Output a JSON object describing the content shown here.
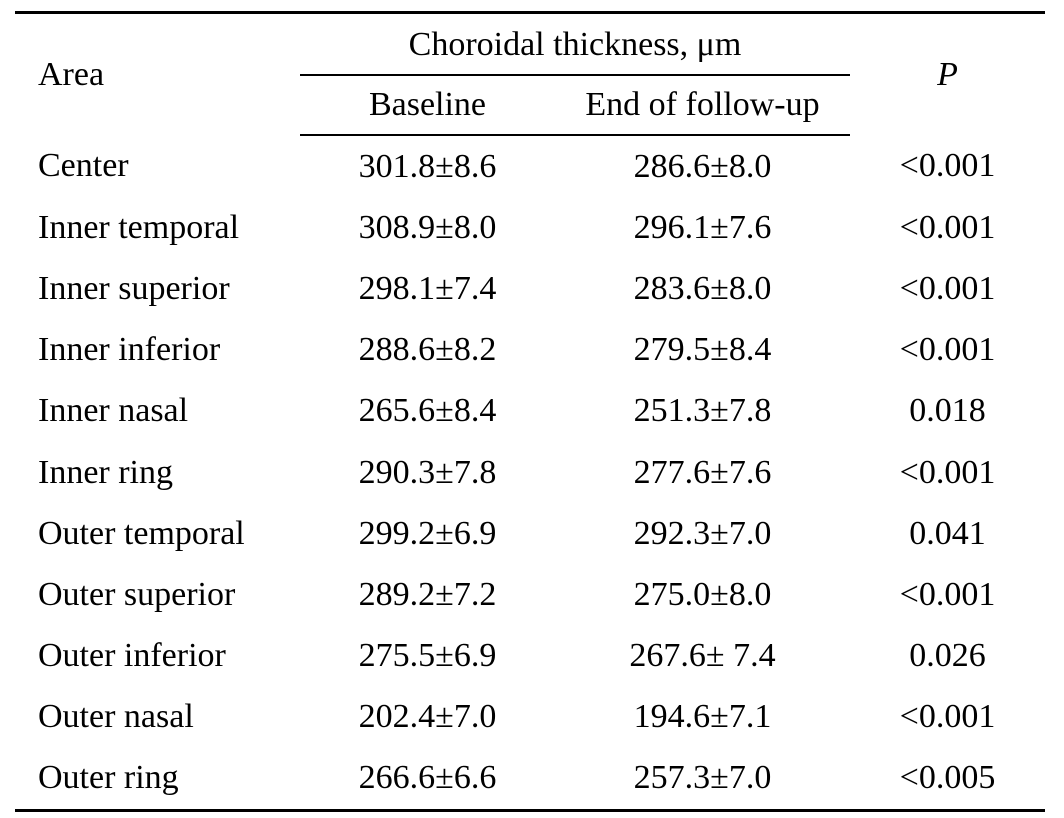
{
  "table": {
    "header": {
      "area": "Area",
      "group": "Choroidal thickness, μm",
      "baseline": "Baseline",
      "end": "End of follow-up",
      "p": "P"
    },
    "rows": [
      {
        "area": "Center",
        "baseline": "301.8±8.6",
        "end": "286.6±8.0",
        "p": "<0.001"
      },
      {
        "area": "Inner temporal",
        "baseline": "308.9±8.0",
        "end": "296.1±7.6",
        "p": "<0.001"
      },
      {
        "area": "Inner superior",
        "baseline": "298.1±7.4",
        "end": "283.6±8.0",
        "p": "<0.001"
      },
      {
        "area": "Inner inferior",
        "baseline": "288.6±8.2",
        "end": "279.5±8.4",
        "p": "<0.001"
      },
      {
        "area": "Inner nasal",
        "baseline": "265.6±8.4",
        "end": "251.3±7.8",
        "p": "0.018"
      },
      {
        "area": "Inner ring",
        "baseline": "290.3±7.8",
        "end": "277.6±7.6",
        "p": "<0.001"
      },
      {
        "area": "Outer temporal",
        "baseline": "299.2±6.9",
        "end": "292.3±7.0",
        "p": "0.041"
      },
      {
        "area": "Outer superior",
        "baseline": "289.2±7.2",
        "end": "275.0±8.0",
        "p": "<0.001"
      },
      {
        "area": "Outer inferior",
        "baseline": "275.5±6.9",
        "end": "267.6± 7.4",
        "p": "0.026"
      },
      {
        "area": "Outer nasal",
        "baseline": "202.4±7.0",
        "end": "194.6±7.1",
        "p": "<0.001"
      },
      {
        "area": "Outer ring",
        "baseline": "266.6±6.6",
        "end": "257.3±7.0",
        "p": "<0.005"
      }
    ]
  }
}
